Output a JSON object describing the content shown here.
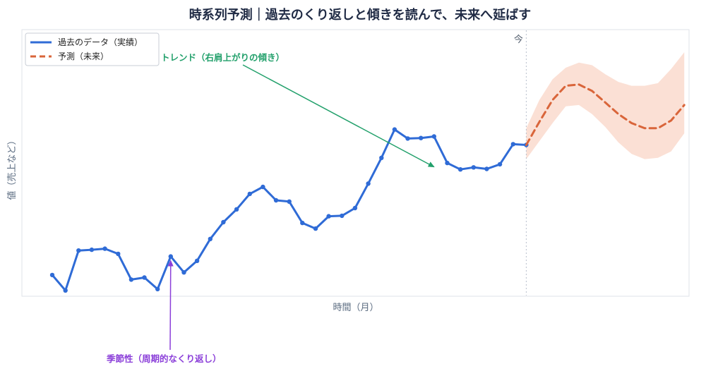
{
  "chart_data": {
    "type": "line",
    "title": "時系列予測｜過去のくり返しと傾きを読んで、未来へ延ばす",
    "xlabel": "時間（月）",
    "ylabel": "値（売上など）",
    "ylim": [
      0,
      100
    ],
    "grid": false,
    "legend_position": "top-left",
    "now_label": "今",
    "now_x": 36,
    "series": [
      {
        "name": "過去のデータ（実績）",
        "color": "#2f6bd6",
        "style": "solid-markers",
        "x": [
          0,
          1,
          2,
          3,
          4,
          5,
          6,
          7,
          8,
          9,
          10,
          11,
          12,
          13,
          14,
          15,
          16,
          17,
          18,
          19,
          20,
          21,
          22,
          23,
          24,
          25,
          26,
          27,
          28,
          29,
          30,
          31,
          32,
          33,
          34,
          35,
          36
        ],
        "y": [
          11.0,
          5.0,
          20.5,
          20.8,
          21.2,
          19.2,
          9.2,
          10.0,
          5.5,
          18.2,
          12.0,
          16.5,
          25.0,
          31.5,
          36.5,
          42.5,
          45.2,
          40.0,
          39.5,
          31.2,
          29.0,
          33.8,
          34.0,
          37.0,
          46.5,
          56.5,
          67.5,
          64.0,
          64.2,
          64.8,
          54.5,
          52.0,
          52.8,
          52.2,
          54.0,
          61.8,
          61.5
        ]
      },
      {
        "name": "予測（未来）",
        "color": "#d9653a",
        "style": "dashed",
        "x": [
          36,
          37,
          38,
          39,
          40,
          41,
          42,
          43,
          44,
          45,
          46,
          47,
          48
        ],
        "y": [
          61.5,
          70.5,
          79.0,
          84.5,
          85.0,
          82.5,
          78.0,
          73.5,
          70.0,
          68.0,
          68.0,
          71.0,
          77.0
        ],
        "band_upper": [
          68.0,
          79.0,
          87.0,
          91.5,
          93.5,
          92.5,
          89.0,
          86.0,
          84.5,
          84.5,
          85.5,
          91.0,
          97.5
        ],
        "band_lower": [
          56.0,
          63.0,
          70.0,
          76.5,
          77.0,
          73.5,
          68.5,
          62.5,
          58.0,
          56.0,
          56.5,
          59.0,
          66.0
        ],
        "band_color": "#f7c7b3"
      }
    ],
    "annotations": [
      {
        "text": "トレンド（右肩上がりの傾き）",
        "color": "#22a06b",
        "target": [
          29,
          53.0
        ]
      },
      {
        "text": "季節性（周期的なくり返し）",
        "color": "#8b3fd9",
        "target": [
          9,
          18.2
        ]
      }
    ]
  }
}
